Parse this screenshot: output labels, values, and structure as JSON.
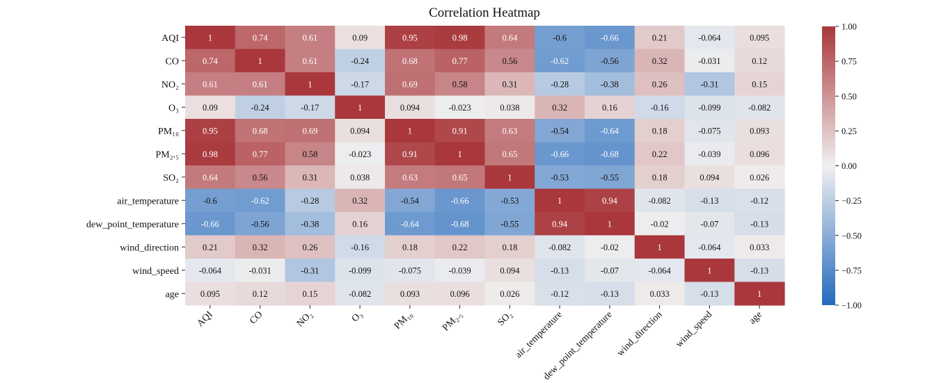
{
  "chart_data": {
    "type": "heatmap",
    "title": "Correlation Heatmap",
    "row_labels": [
      "AQI",
      "CO",
      "NO₂",
      "O₃",
      "PM₁₀",
      "PM₂.₅",
      "SO₂",
      "air_temperature",
      "dew_point_temperature",
      "wind_direction",
      "wind_speed",
      "age"
    ],
    "col_labels": [
      "AQI",
      "CO",
      "NO₂",
      "O₃",
      "PM₁₀",
      "PM₂.₅",
      "SO₂",
      "air_temperature",
      "dew_point_temperature",
      "wind_direction",
      "wind_speed",
      "age"
    ],
    "values": [
      [
        1,
        0.74,
        0.61,
        0.09,
        0.95,
        0.98,
        0.64,
        -0.6,
        -0.66,
        0.21,
        -0.064,
        0.095
      ],
      [
        0.74,
        1,
        0.61,
        -0.24,
        0.68,
        0.77,
        0.56,
        -0.62,
        -0.56,
        0.32,
        -0.031,
        0.12
      ],
      [
        0.61,
        0.61,
        1,
        -0.17,
        0.69,
        0.58,
        0.31,
        -0.28,
        -0.38,
        0.26,
        -0.31,
        0.15
      ],
      [
        0.09,
        -0.24,
        -0.17,
        1,
        0.094,
        -0.023,
        0.038,
        0.32,
        0.16,
        -0.16,
        -0.099,
        -0.082
      ],
      [
        0.95,
        0.68,
        0.69,
        0.094,
        1,
        0.91,
        0.63,
        -0.54,
        -0.64,
        0.18,
        -0.075,
        0.093
      ],
      [
        0.98,
        0.77,
        0.58,
        -0.023,
        0.91,
        1,
        0.65,
        -0.66,
        -0.68,
        0.22,
        -0.039,
        0.096
      ],
      [
        0.64,
        0.56,
        0.31,
        0.038,
        0.63,
        0.65,
        1,
        -0.53,
        -0.55,
        0.18,
        0.094,
        0.026
      ],
      [
        -0.6,
        -0.62,
        -0.28,
        0.32,
        -0.54,
        -0.66,
        -0.53,
        1,
        0.94,
        -0.082,
        -0.13,
        -0.12
      ],
      [
        -0.66,
        -0.56,
        -0.38,
        0.16,
        -0.64,
        -0.68,
        -0.55,
        0.94,
        1,
        -0.02,
        -0.07,
        -0.13
      ],
      [
        0.21,
        0.32,
        0.26,
        -0.16,
        0.18,
        0.22,
        0.18,
        -0.082,
        -0.02,
        1,
        -0.064,
        0.033
      ],
      [
        -0.064,
        -0.031,
        -0.31,
        -0.099,
        -0.075,
        -0.039,
        0.094,
        -0.13,
        -0.07,
        -0.064,
        1,
        -0.13
      ],
      [
        0.095,
        0.12,
        0.15,
        -0.082,
        0.093,
        0.096,
        0.026,
        -0.12,
        -0.13,
        0.033,
        -0.13,
        1
      ]
    ],
    "colorbar": {
      "range": [
        -1.0,
        1.0
      ],
      "ticks": [
        1.0,
        0.75,
        0.5,
        0.25,
        0.0,
        -0.25,
        -0.5,
        -0.75,
        -1.0
      ],
      "tick_labels": [
        "1.00",
        "0.75",
        "0.50",
        "0.25",
        "0.00",
        "−0.25",
        "−0.50",
        "−0.75",
        "−1.00"
      ],
      "colormap": "vlag",
      "colors": {
        "low": "#2369bd",
        "mid": "#f1f0f0",
        "high": "#a9373b"
      }
    },
    "annotations": "values printed in each cell"
  }
}
